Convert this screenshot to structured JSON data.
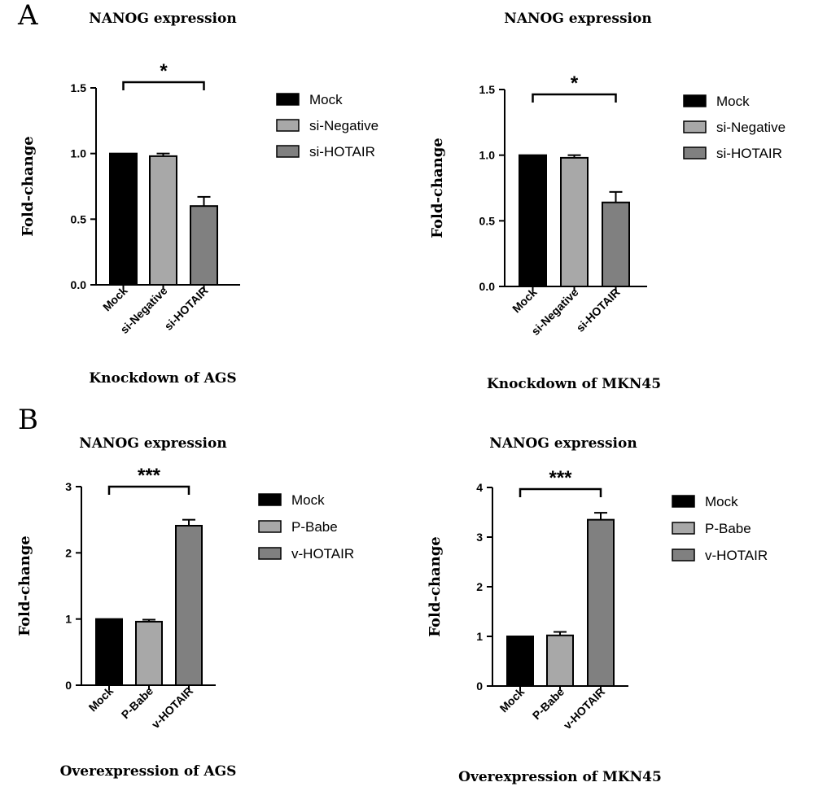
{
  "panels": [
    {
      "letter": "A",
      "chart_data": [
        {
          "type": "bar",
          "title": "NANOG expression",
          "xlabel": "Knockdown of AGS",
          "ylabel": "Fold-change",
          "categories": [
            "Mock",
            "si-Negative",
            "si-HOTAIR"
          ],
          "values": [
            1.0,
            0.98,
            0.6
          ],
          "errors": [
            0,
            0.02,
            0.07
          ],
          "ylim": [
            0,
            1.5
          ],
          "yticks": [
            "0.0",
            "0.5",
            "1.0",
            "1.5"
          ],
          "significance": {
            "from": 0,
            "to": 2,
            "label": "*"
          },
          "legend": [
            "Mock",
            "si-Negative",
            "si-HOTAIR"
          ],
          "legend_position": "right",
          "colors": [
            "#000000",
            "#a8a8a8",
            "#808080"
          ]
        },
        {
          "type": "bar",
          "title": "NANOG expression",
          "xlabel": "Knockdown of MKN45",
          "ylabel": "Fold-change",
          "categories": [
            "Mock",
            "si-Negative",
            "si-HOTAIR"
          ],
          "values": [
            1.0,
            0.98,
            0.64
          ],
          "errors": [
            0,
            0.02,
            0.08
          ],
          "ylim": [
            0,
            1.5
          ],
          "yticks": [
            "0.0",
            "0.5",
            "1.0",
            "1.5"
          ],
          "significance": {
            "from": 0,
            "to": 2,
            "label": "*"
          },
          "legend": [
            "Mock",
            "si-Negative",
            "si-HOTAIR"
          ],
          "legend_position": "right",
          "colors": [
            "#000000",
            "#a8a8a8",
            "#808080"
          ]
        }
      ]
    },
    {
      "letter": "B",
      "chart_data": [
        {
          "type": "bar",
          "title": "NANOG expression",
          "xlabel": "Overexpression of AGS",
          "ylabel": "Fold-change",
          "categories": [
            "Mock",
            "P-Babe",
            "v-HOTAIR"
          ],
          "values": [
            1.0,
            0.96,
            2.41
          ],
          "errors": [
            0,
            0.03,
            0.09
          ],
          "ylim": [
            0,
            3
          ],
          "yticks": [
            "0",
            "1",
            "2",
            "3"
          ],
          "significance": {
            "from": 0,
            "to": 2,
            "label": "***"
          },
          "legend": [
            "Mock",
            "P-Babe",
            "v-HOTAIR"
          ],
          "legend_position": "right",
          "colors": [
            "#000000",
            "#a8a8a8",
            "#808080"
          ]
        },
        {
          "type": "bar",
          "title": "NANOG expression",
          "xlabel": "Overexpression of MKN45",
          "ylabel": "Fold-change",
          "categories": [
            "Mock",
            "P-Babe",
            "v-HOTAIR"
          ],
          "values": [
            1.0,
            1.02,
            3.35
          ],
          "errors": [
            0,
            0.07,
            0.14
          ],
          "ylim": [
            0,
            4
          ],
          "yticks": [
            "0",
            "1",
            "2",
            "3",
            "4"
          ],
          "significance": {
            "from": 0,
            "to": 2,
            "label": "***"
          },
          "legend": [
            "Mock",
            "P-Babe",
            "v-HOTAIR"
          ],
          "legend_position": "right",
          "colors": [
            "#000000",
            "#a8a8a8",
            "#808080"
          ]
        }
      ]
    }
  ]
}
